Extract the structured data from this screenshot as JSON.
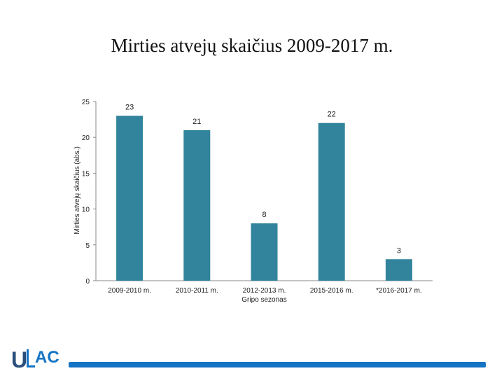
{
  "title": "Mirties atvejų skaičius 2009-2017 m.",
  "colors": {
    "bar": "#31849b",
    "footer_bar": "#1574c4",
    "logo_u": "#2b4f7a",
    "logo_lac": "#1574c4"
  },
  "logo": {
    "text": "ULAC"
  },
  "chart_data": {
    "type": "bar",
    "categories": [
      "2009-2010 m.",
      "2010-2011 m.",
      "2012-2013 m.\nGripo sezonas",
      "2015-2016 m.",
      "*2016-2017 m."
    ],
    "values": [
      23,
      21,
      8,
      22,
      3
    ],
    "ylabel": "Mirties atvejų skaičius (abs.)",
    "ylim": [
      0,
      25
    ],
    "yticks": [
      0,
      5,
      10,
      15,
      20,
      25
    ],
    "grid": false,
    "legend": "none"
  }
}
